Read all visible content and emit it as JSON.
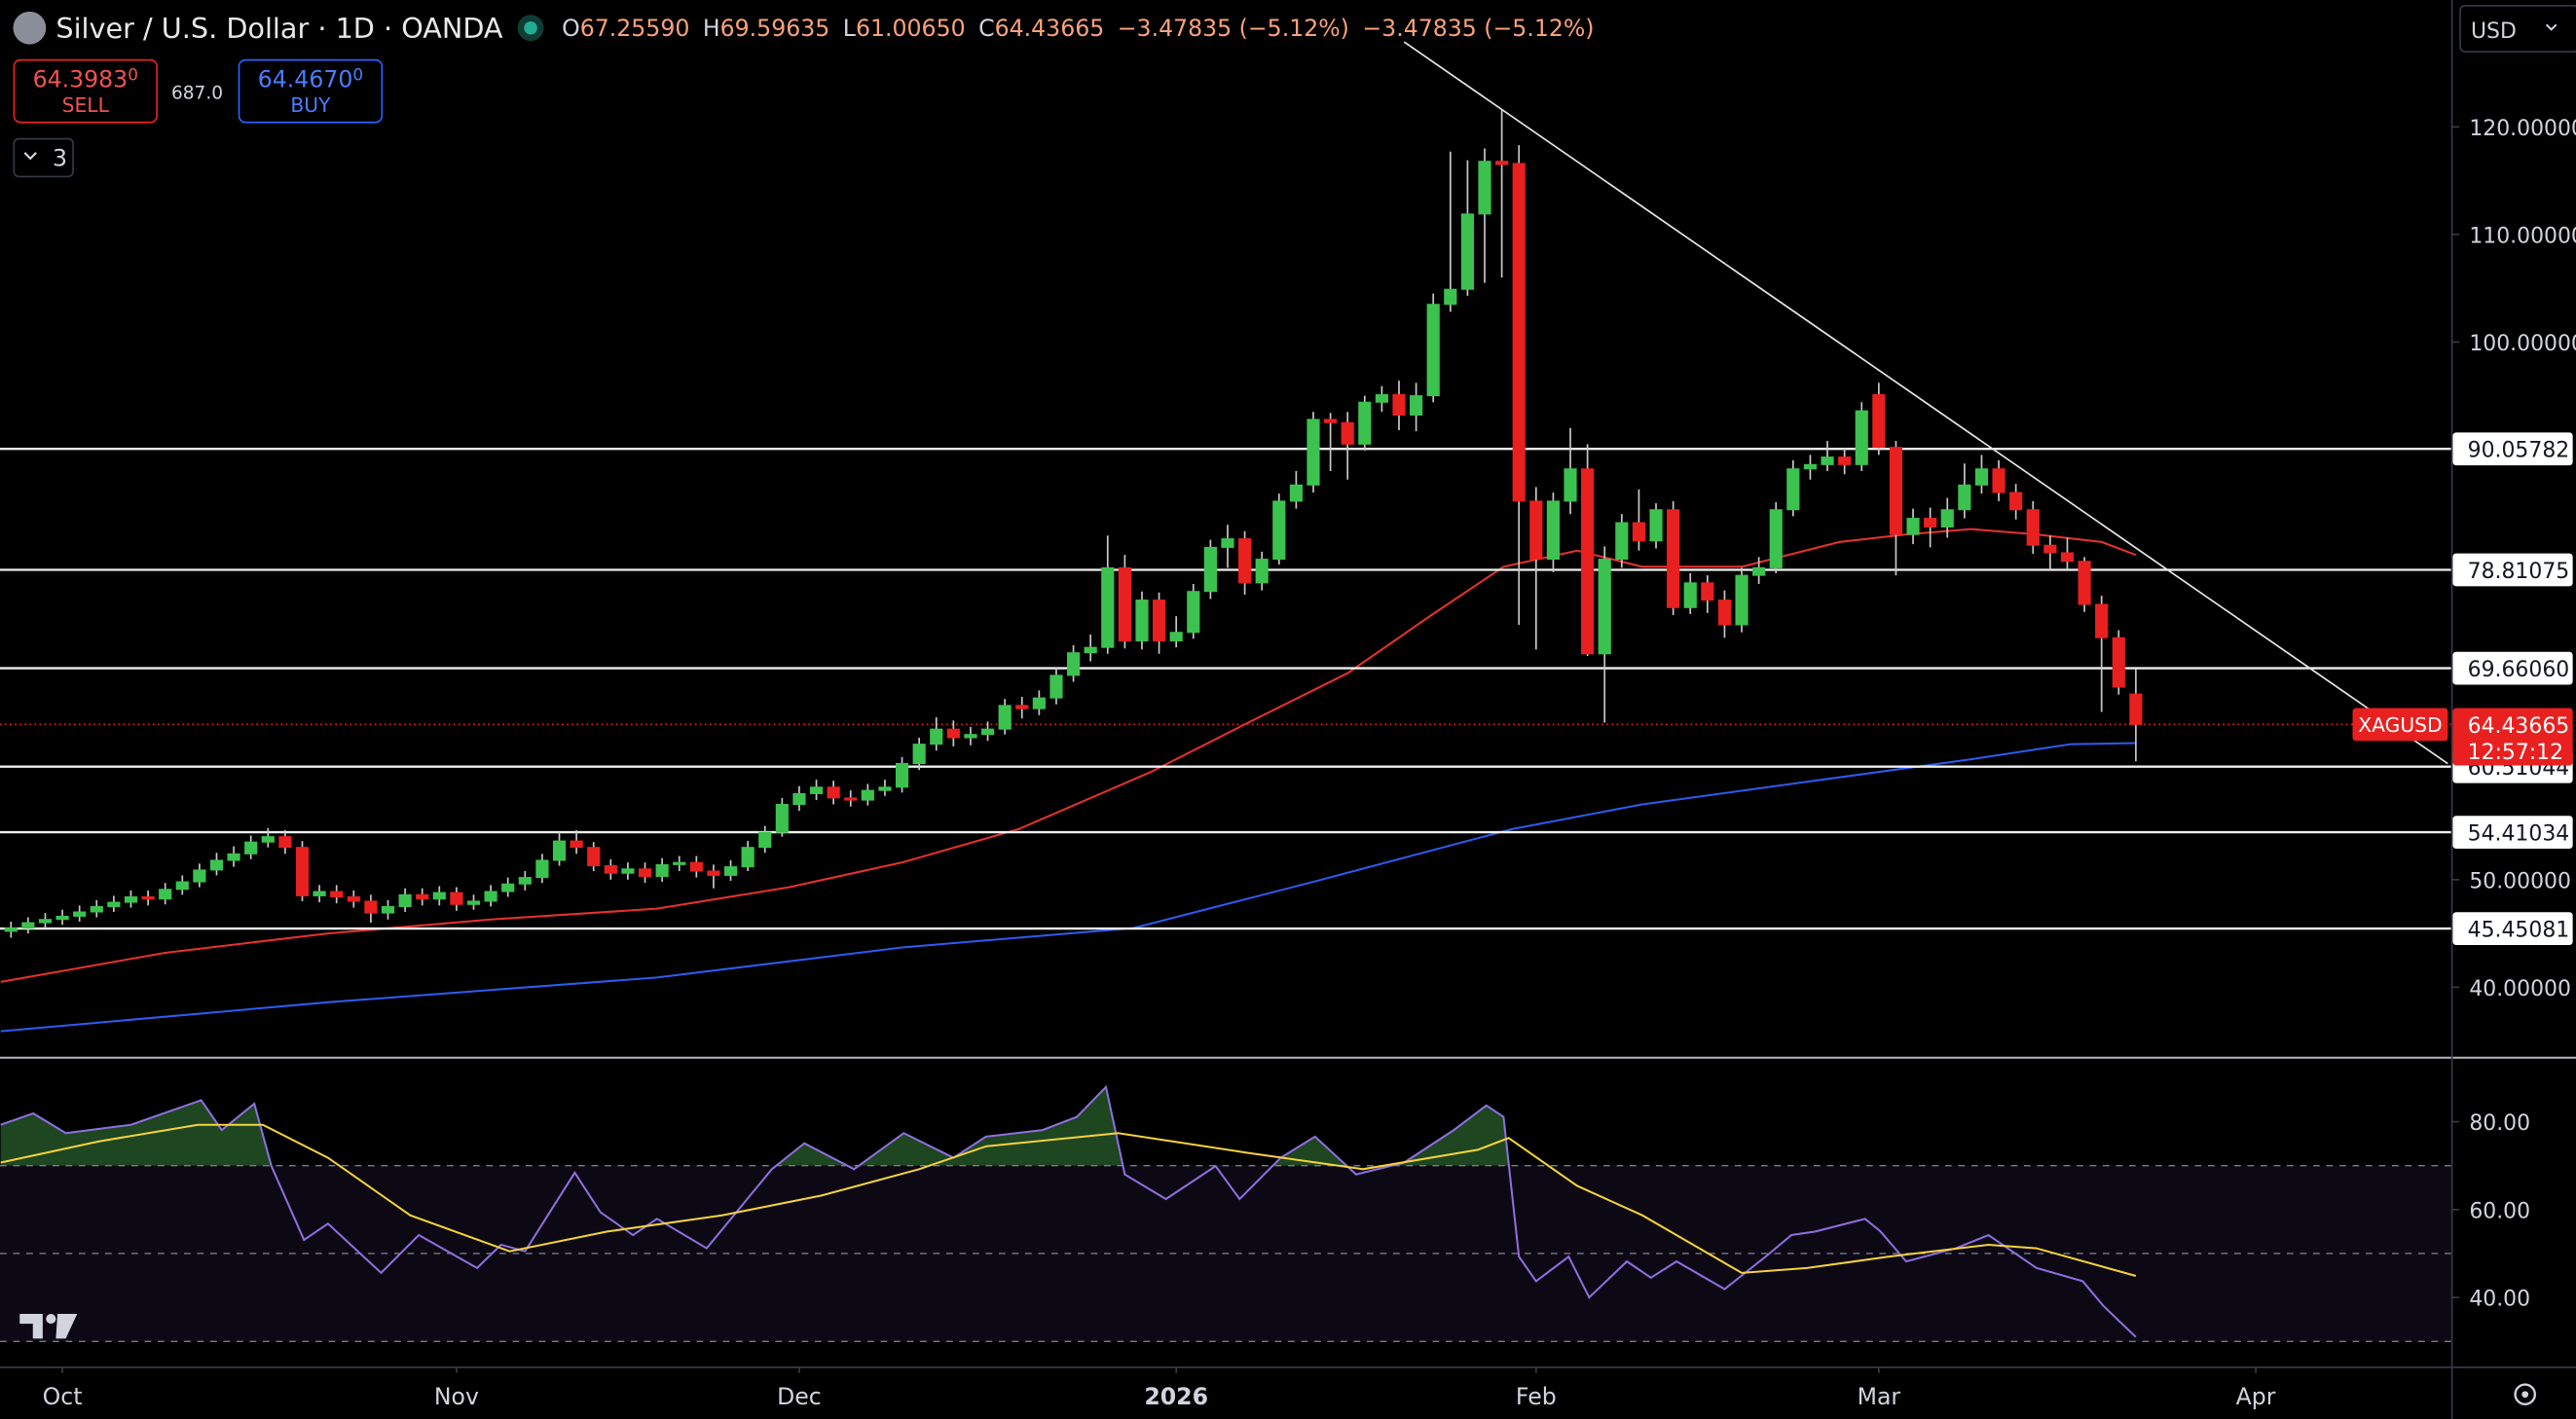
{
  "header": {
    "symbol": "Silver / U.S. Dollar · 1D · OANDA",
    "ohlc": [
      {
        "key": "O",
        "value": "67.25590"
      },
      {
        "key": "H",
        "value": "69.59635"
      },
      {
        "key": "L",
        "value": "61.00650"
      },
      {
        "key": "C",
        "value": "64.43665"
      }
    ],
    "change": "−3.47835 (−5.12%)",
    "change2": "−3.47835 (−5.12%)",
    "sell": {
      "price": "64.3983",
      "pip": "0",
      "label": "SELL"
    },
    "spread": "687.0",
    "buy": {
      "price": "64.4670",
      "pip": "0",
      "label": "BUY"
    },
    "indicators": "3",
    "currency": "USD"
  },
  "chart_data": [
    {
      "type": "candlestick",
      "up_color": "#3cc24f",
      "down_color": "#e8201f",
      "x": [
        -3,
        -2,
        -1,
        0,
        1,
        2,
        3,
        4,
        5,
        6,
        7,
        8,
        9,
        10,
        11,
        12,
        13,
        14,
        15,
        16,
        17,
        18,
        19,
        20,
        21,
        22,
        23,
        24,
        25,
        26,
        27,
        28,
        29,
        30,
        31,
        32,
        33,
        34,
        35,
        36,
        37,
        38,
        39,
        40,
        41,
        42,
        43,
        44,
        45,
        46,
        47,
        48,
        49,
        50,
        51,
        52,
        53,
        54,
        55,
        56,
        57,
        58,
        59,
        60,
        61,
        62,
        63,
        64,
        65,
        66,
        67,
        68,
        69,
        70,
        71,
        72,
        73,
        74,
        75,
        76,
        77,
        78,
        79,
        80,
        81,
        82,
        83,
        84,
        85,
        86,
        87,
        88,
        89,
        90,
        91,
        92,
        93,
        94,
        95,
        96,
        97,
        98,
        99,
        100,
        101,
        102,
        103,
        104,
        105,
        106,
        107,
        108,
        109,
        110,
        111,
        112,
        113,
        114,
        115,
        116,
        117,
        118,
        119,
        120,
        121
      ],
      "open": [
        45.2,
        45.5,
        46.0,
        46.3,
        46.6,
        47.0,
        47.5,
        47.9,
        48.4,
        48.2,
        49.1,
        49.8,
        50.9,
        51.8,
        52.4,
        53.5,
        54.0,
        53.0,
        48.5,
        48.9,
        48.4,
        48.0,
        46.9,
        47.5,
        48.6,
        48.2,
        48.8,
        47.7,
        48.0,
        48.9,
        49.6,
        50.2,
        51.8,
        53.6,
        53.0,
        51.3,
        50.6,
        51.0,
        50.3,
        51.4,
        51.6,
        50.8,
        50.4,
        51.2,
        53.0,
        54.4,
        57.0,
        58.0,
        58.6,
        57.6,
        57.4,
        58.3,
        58.6,
        60.8,
        62.6,
        64.0,
        63.2,
        63.5,
        64.0,
        66.2,
        65.9,
        66.9,
        69.0,
        71.1,
        71.6,
        79.0,
        72.2,
        76.0,
        72.2,
        73.0,
        76.8,
        80.9,
        81.7,
        77.6,
        79.8,
        85.2,
        86.7,
        92.8,
        92.5,
        90.5,
        94.4,
        95.1,
        93.2,
        95.0,
        103.5,
        104.9,
        111.9,
        116.8,
        116.6,
        85.2,
        79.8,
        85.2,
        88.2,
        71.0,
        79.8,
        83.2,
        81.5,
        84.4,
        75.3,
        77.6,
        76.0,
        73.7,
        78.3,
        79.0,
        84.4,
        88.2,
        88.6,
        89.3,
        88.6,
        95.1,
        90.2,
        82.1,
        83.6,
        82.8,
        84.4,
        86.7,
        88.2,
        86.0,
        84.4,
        81.1,
        80.4,
        79.6,
        75.6,
        72.5,
        67.2559
      ],
      "high": [
        46.1,
        46.5,
        46.9,
        47.2,
        47.6,
        48.1,
        48.5,
        49.0,
        49.0,
        49.7,
        50.4,
        51.5,
        52.5,
        53.1,
        54.1,
        54.8,
        54.6,
        53.6,
        49.5,
        49.5,
        49.0,
        48.6,
        48.1,
        49.2,
        49.2,
        49.4,
        49.3,
        48.6,
        49.5,
        50.2,
        50.8,
        52.4,
        54.4,
        54.6,
        53.5,
        51.9,
        51.6,
        51.6,
        52.0,
        52.2,
        52.2,
        51.4,
        51.8,
        53.6,
        55.0,
        57.6,
        58.7,
        59.3,
        59.2,
        58.3,
        58.9,
        59.3,
        61.4,
        63.2,
        65.1,
        64.8,
        64.2,
        64.7,
        66.8,
        67.0,
        67.6,
        69.7,
        71.8,
        72.8,
        82.0,
        80.2,
        76.8,
        76.7,
        74.5,
        77.5,
        81.6,
        83.0,
        82.4,
        80.5,
        85.9,
        88.0,
        93.5,
        93.4,
        93.5,
        95.0,
        95.9,
        96.4,
        96.2,
        104.5,
        117.7,
        116.9,
        118.0,
        121.6,
        118.3,
        86.5,
        86.0,
        92.0,
        90.5,
        81.0,
        84.0,
        86.3,
        85.0,
        85.2,
        78.5,
        78.3,
        76.9,
        79.0,
        80.0,
        85.1,
        89.0,
        89.5,
        90.8,
        90.1,
        94.4,
        96.2,
        90.8,
        84.5,
        84.6,
        85.5,
        88.7,
        89.5,
        89.0,
        86.8,
        85.2,
        82.0,
        81.8,
        80.0,
        76.4,
        73.2,
        69.59635
      ],
      "low": [
        44.6,
        45.0,
        45.5,
        45.8,
        46.1,
        46.5,
        47.0,
        47.4,
        47.6,
        47.7,
        48.6,
        49.3,
        50.4,
        51.2,
        51.9,
        53.0,
        52.4,
        48.0,
        47.9,
        47.8,
        47.4,
        46.0,
        46.3,
        47.0,
        47.6,
        47.6,
        47.1,
        47.2,
        47.5,
        48.4,
        49.0,
        49.7,
        51.3,
        52.4,
        50.8,
        50.0,
        50.0,
        49.7,
        49.8,
        50.8,
        50.2,
        49.2,
        49.9,
        50.8,
        52.5,
        54.0,
        56.4,
        57.4,
        57.0,
        56.8,
        56.9,
        57.8,
        58.1,
        60.2,
        62.0,
        62.4,
        62.5,
        62.9,
        63.5,
        65.0,
        65.3,
        66.3,
        68.4,
        70.3,
        71.0,
        71.5,
        71.4,
        71.0,
        71.6,
        72.4,
        76.1,
        79.0,
        76.5,
        76.9,
        79.3,
        84.5,
        86.0,
        88.0,
        87.2,
        89.9,
        93.5,
        91.8,
        91.7,
        94.4,
        102.8,
        104.3,
        105.5,
        106.0,
        73.7,
        71.4,
        78.6,
        84.0,
        70.8,
        64.6,
        79.0,
        80.6,
        80.8,
        74.6,
        74.7,
        74.8,
        72.5,
        73.0,
        77.5,
        78.5,
        83.8,
        87.2,
        88.0,
        87.7,
        88.0,
        89.5,
        78.3,
        81.2,
        80.9,
        81.8,
        83.6,
        85.9,
        85.2,
        83.5,
        80.3,
        78.8,
        78.7,
        74.9,
        65.6,
        67.2,
        61.0065
      ],
      "close": [
        45.5,
        46.0,
        46.3,
        46.6,
        47.0,
        47.5,
        47.9,
        48.4,
        48.2,
        49.1,
        49.8,
        50.9,
        51.8,
        52.4,
        53.5,
        54.0,
        53.0,
        48.5,
        48.9,
        48.4,
        48.0,
        46.9,
        47.5,
        48.6,
        48.2,
        48.8,
        47.7,
        48.0,
        48.9,
        49.6,
        50.2,
        51.8,
        53.6,
        53.0,
        51.3,
        50.6,
        51.0,
        50.3,
        51.4,
        51.6,
        50.8,
        50.4,
        51.2,
        53.0,
        54.4,
        57.0,
        58.0,
        58.6,
        57.6,
        57.4,
        58.3,
        58.6,
        60.8,
        62.6,
        64.0,
        63.2,
        63.5,
        64.0,
        66.2,
        65.9,
        66.9,
        69.0,
        71.1,
        71.6,
        79.0,
        72.2,
        76.0,
        72.2,
        73.0,
        76.8,
        80.9,
        81.7,
        77.6,
        79.8,
        85.2,
        86.7,
        92.8,
        92.5,
        90.5,
        94.4,
        95.1,
        93.2,
        95.0,
        103.5,
        104.9,
        111.9,
        116.8,
        116.5,
        85.2,
        79.8,
        85.2,
        88.2,
        71.0,
        79.8,
        83.2,
        81.5,
        84.4,
        75.3,
        77.6,
        76.0,
        73.7,
        78.3,
        79.0,
        84.4,
        88.2,
        88.6,
        89.3,
        88.6,
        93.6,
        90.2,
        82.1,
        83.6,
        82.8,
        84.4,
        86.7,
        88.2,
        86.0,
        84.4,
        81.1,
        80.4,
        79.6,
        75.6,
        72.5,
        67.9,
        64.43665
      ],
      "lines": [
        {
          "color": "#e8312f",
          "x": [
            -3.6,
            6,
            15.5,
            25,
            34.7,
            42.4,
            49,
            55.8,
            63.5,
            69.2,
            75,
            79.8,
            84.1,
            88.4,
            92.2,
            98,
            103.7,
            107.6,
            111.4,
            115.2,
            119,
            121
          ],
          "values": [
            40.5,
            43.2,
            45.0,
            46.3,
            47.3,
            49.3,
            51.6,
            54.7,
            60.0,
            64.6,
            69.2,
            74.5,
            79.1,
            80.6,
            79.1,
            79.1,
            81.4,
            82.1,
            82.6,
            82.1,
            81.4,
            80.2
          ]
        },
        {
          "color": "#2e5bf0",
          "x": [
            -3.6,
            15.5,
            34.7,
            49,
            62.5,
            73,
            84.6,
            92.2,
            101.8,
            111.4,
            117.2,
            121
          ],
          "values": [
            35.9,
            38.6,
            40.9,
            43.7,
            45.5,
            49.8,
            54.7,
            57.0,
            59.1,
            61.2,
            62.6,
            62.7
          ]
        }
      ],
      "xlim": [
        -3.64,
        139.4
      ],
      "ylim": [
        33.6,
        131.8
      ],
      "yticks": [
        {
          "value": 40,
          "label": "40.00000"
        },
        {
          "value": 50,
          "label": "50.00000"
        },
        {
          "value": 100,
          "label": "100.00000"
        },
        {
          "value": 110,
          "label": "110.00000"
        },
        {
          "value": 120,
          "label": "120.00000"
        }
      ],
      "levels": [
        90.05782,
        78.81075,
        {
          "value": 69.6606,
          "label": "69.66060"
        },
        60.51044,
        54.41034,
        45.45081
      ],
      "trendline": {
        "x": [
          78.3,
          139.2
        ],
        "y": [
          127.9,
          60.8
        ]
      },
      "last": {
        "name": "XAGUSD",
        "value": 64.43665,
        "countdown": "12:57:12",
        "color": "#e8201f"
      }
    },
    {
      "type": "line",
      "xlim": [
        -3.64,
        139.4
      ],
      "ylim": [
        24.3,
        94.2
      ],
      "yticks": [
        {
          "value": 40,
          "label": "40.00"
        },
        {
          "value": 60,
          "label": "60.00"
        },
        {
          "value": 80,
          "label": "80.00"
        }
      ],
      "bands": [
        70,
        50,
        30
      ],
      "series": [
        {
          "color": "#8e6fe0",
          "x": [
            -3.6,
            -1.7,
            0.2,
            4.0,
            8.1,
            9.3,
            11.2,
            12.2,
            14.1,
            15.5,
            18.6,
            20.8,
            24.2,
            25.6,
            27.0,
            29.9,
            31.4,
            33.3,
            34.7,
            37.6,
            41.4,
            43.3,
            46.2,
            49.1,
            52.0,
            53.9,
            57.2,
            59.2,
            60.9,
            62.0,
            64.4,
            67.3,
            68.7,
            71.1,
            73.1,
            75.5,
            78.3,
            81.2,
            83.1,
            84.1,
            85.0,
            86.0,
            87.9,
            89.1,
            91.3,
            92.7,
            94.2,
            97.0,
            99.4,
            100.9,
            102.3,
            105.2,
            106.1,
            107.6,
            110.5,
            112.4,
            115.2,
            117.9,
            119.1,
            121.0
          ],
          "values": [
            79.3,
            81.9,
            77.4,
            79.3,
            84.9,
            78.1,
            84.1,
            69.9,
            53.1,
            56.8,
            45.6,
            54.2,
            46.7,
            52.0,
            50.5,
            68.4,
            59.4,
            54.2,
            57.9,
            51.2,
            69.2,
            75.1,
            69.2,
            77.4,
            71.8,
            76.6,
            78.1,
            81.1,
            87.9,
            68.0,
            62.4,
            69.9,
            62.4,
            71.8,
            76.6,
            68.0,
            70.7,
            78.1,
            83.7,
            81.1,
            49.3,
            43.7,
            49.3,
            40.0,
            48.2,
            44.5,
            48.2,
            41.9,
            49.3,
            54.2,
            55.0,
            57.9,
            55.0,
            48.2,
            51.2,
            54.2,
            46.7,
            43.7,
            38.1,
            31.0
          ]
        },
        {
          "color": "#f5d33a",
          "x": [
            -3.6,
            2.1,
            7.9,
            11.7,
            15.5,
            20.3,
            26.1,
            31.8,
            38.5,
            44.3,
            50.0,
            53.9,
            61.6,
            69.2,
            75.9,
            82.6,
            84.4,
            88.4,
            92.2,
            98.0,
            101.8,
            106.6,
            112.4,
            115.2,
            121.0
          ],
          "values": [
            70.7,
            75.5,
            79.3,
            79.3,
            71.8,
            58.7,
            50.5,
            55.0,
            58.7,
            63.2,
            69.2,
            74.4,
            77.4,
            72.9,
            69.2,
            73.6,
            76.3,
            65.4,
            58.7,
            45.6,
            46.7,
            49.3,
            52.0,
            51.2,
            44.9
          ]
        }
      ],
      "xticks": [
        {
          "value": 0,
          "label": "Oct"
        },
        {
          "value": 23,
          "label": "Nov"
        },
        {
          "value": 43,
          "label": "Dec"
        },
        {
          "value": 65,
          "label": "2026"
        },
        {
          "value": 86,
          "label": "Feb"
        },
        {
          "value": 106,
          "label": "Mar"
        },
        {
          "value": 128,
          "label": "Apr"
        }
      ]
    }
  ]
}
